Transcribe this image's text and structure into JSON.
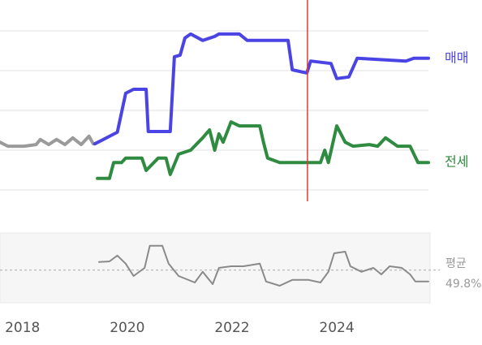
{
  "chart_data": [
    {
      "type": "line",
      "xlim": [
        2017.57,
        2025.75
      ],
      "ylim": [
        0,
        5
      ],
      "yticks": [
        1,
        2,
        3,
        4,
        5
      ],
      "grid": true,
      "marker_x": 2023.44,
      "marker_color": "#e53935",
      "series": [
        {
          "color": "#9a9a9a",
          "x": [
            2017.57,
            2017.72,
            2017.88,
            2018.03,
            2018.26,
            2018.34,
            2018.5,
            2018.65,
            2018.81,
            2018.96,
            2019.12,
            2019.27,
            2019.35
          ],
          "values": [
            2.2,
            2.1,
            2.1,
            2.1,
            2.14,
            2.27,
            2.14,
            2.27,
            2.14,
            2.31,
            2.14,
            2.35,
            2.16
          ]
        },
        {
          "name": "매매",
          "color": "#4b44e4",
          "x": [
            2019.38,
            2019.81,
            2019.97,
            2020.12,
            2020.36,
            2020.4,
            2020.82,
            2020.9,
            2021.01,
            2021.1,
            2021.21,
            2021.44,
            2021.67,
            2021.75,
            2022.14,
            2022.29,
            2023.07,
            2023.15,
            2023.43,
            2023.5,
            2023.89,
            2024.0,
            2024.23,
            2024.39,
            2025.32,
            2025.47,
            2025.75
          ],
          "values": [
            2.16,
            2.45,
            3.43,
            3.53,
            3.53,
            2.47,
            2.47,
            4.35,
            4.39,
            4.82,
            4.92,
            4.76,
            4.86,
            4.92,
            4.92,
            4.76,
            4.76,
            4.02,
            3.94,
            4.24,
            4.18,
            3.8,
            3.84,
            4.31,
            4.24,
            4.31,
            4.31
          ]
        },
        {
          "name": "전세",
          "color": "#2e8b40",
          "x": [
            2019.43,
            2019.66,
            2019.74,
            2019.89,
            2019.97,
            2020.28,
            2020.36,
            2020.59,
            2020.74,
            2020.82,
            2020.98,
            2021.21,
            2021.44,
            2021.57,
            2021.67,
            2021.75,
            2021.83,
            2021.98,
            2022.14,
            2022.53,
            2022.6,
            2022.68,
            2022.91,
            2023.07,
            2023.69,
            2023.77,
            2023.84,
            2024.0,
            2024.16,
            2024.31,
            2024.62,
            2024.78,
            2024.93,
            2025.16,
            2025.4,
            2025.55,
            2025.75
          ],
          "values": [
            1.29,
            1.29,
            1.69,
            1.69,
            1.8,
            1.8,
            1.49,
            1.8,
            1.8,
            1.39,
            1.9,
            2.0,
            2.31,
            2.51,
            2.0,
            2.41,
            2.2,
            2.71,
            2.61,
            2.61,
            2.2,
            1.8,
            1.69,
            1.69,
            1.69,
            2.0,
            1.69,
            2.61,
            2.2,
            2.1,
            2.14,
            2.1,
            2.31,
            2.1,
            2.1,
            1.69,
            1.69
          ]
        }
      ]
    },
    {
      "type": "line",
      "xlim": [
        2017.57,
        2025.75
      ],
      "ylim": [
        40,
        60
      ],
      "xticks": [
        2018,
        2020,
        2022,
        2024
      ],
      "average": {
        "label": "평균",
        "value": 49.8,
        "value_label": "49.8%"
      },
      "series": [
        {
          "color": "#8a8a8a",
          "x": [
            2019.46,
            2019.66,
            2019.81,
            2019.97,
            2020.12,
            2020.33,
            2020.43,
            2020.67,
            2020.79,
            2020.98,
            2021.29,
            2021.44,
            2021.63,
            2021.75,
            2021.98,
            2022.22,
            2022.53,
            2022.65,
            2022.91,
            2023.15,
            2023.46,
            2023.69,
            2023.84,
            2023.95,
            2024.16,
            2024.26,
            2024.47,
            2024.7,
            2024.85,
            2025.01,
            2025.24,
            2025.4,
            2025.5,
            2025.75
          ],
          "values": [
            52.3,
            52.5,
            54.3,
            51.8,
            48,
            50.5,
            57.3,
            57.3,
            51.8,
            48,
            46,
            49.3,
            45.5,
            50.5,
            51,
            51,
            51.8,
            46.3,
            45,
            46.8,
            46.8,
            46,
            49.3,
            55,
            55.5,
            51,
            49.3,
            50.5,
            48.5,
            51,
            50.5,
            48.5,
            46.3,
            46.3
          ]
        }
      ]
    }
  ]
}
